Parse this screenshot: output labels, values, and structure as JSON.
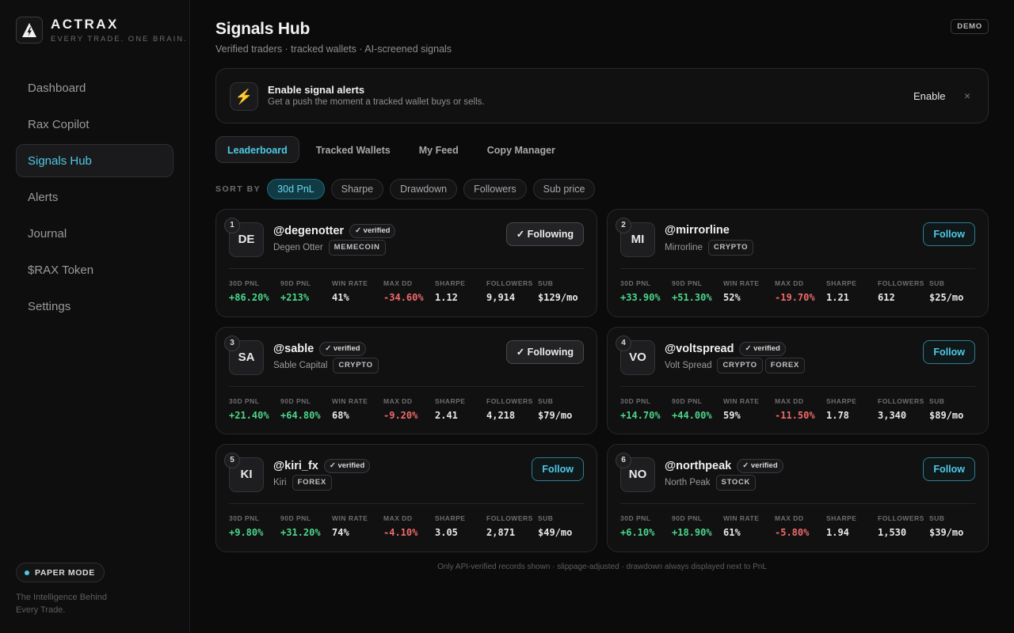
{
  "brand": {
    "name": "ACTRAX",
    "tagline": "EVERY TRADE. ONE BRAIN."
  },
  "nav": [
    {
      "label": "Dashboard",
      "key": "dashboard",
      "active": false
    },
    {
      "label": "Rax Copilot",
      "key": "rax-copilot",
      "active": false
    },
    {
      "label": "Signals Hub",
      "key": "signals-hub",
      "active": true
    },
    {
      "label": "Alerts",
      "key": "alerts",
      "active": false
    },
    {
      "label": "Journal",
      "key": "journal",
      "active": false
    },
    {
      "label": "$RAX Token",
      "key": "rax-token",
      "active": false
    },
    {
      "label": "Settings",
      "key": "settings",
      "active": false
    }
  ],
  "sidebar_footer": {
    "mode_label": "PAPER MODE",
    "blurb": "The Intelligence Behind Every Trade."
  },
  "page": {
    "title": "Signals Hub",
    "subtitle": "Verified traders · tracked wallets · AI-screened signals",
    "badge": "DEMO"
  },
  "alert": {
    "icon": "lightning-icon",
    "title": "Enable signal alerts",
    "text": "Get a push the moment a tracked wallet buys or sells.",
    "action": "Enable",
    "close": "×"
  },
  "tabs": [
    {
      "label": "Leaderboard",
      "active": true
    },
    {
      "label": "Tracked Wallets",
      "active": false
    },
    {
      "label": "My Feed",
      "active": false
    },
    {
      "label": "Copy Manager",
      "active": false
    }
  ],
  "sort": {
    "label": "SORT BY",
    "options": [
      {
        "label": "30d PnL",
        "active": true
      },
      {
        "label": "Sharpe",
        "active": false
      },
      {
        "label": "Drawdown",
        "active": false
      },
      {
        "label": "Followers",
        "active": false
      },
      {
        "label": "Sub price",
        "active": false
      }
    ]
  },
  "stat_labels": [
    "30D PNL",
    "90D PNL",
    "WIN RATE",
    "MAX DD",
    "SHARPE",
    "FOLLOWERS",
    "SUB"
  ],
  "verified_label": "✓ verified",
  "traders": [
    {
      "rank": "1",
      "initials": "DE",
      "handle": "@degenotter",
      "verified": true,
      "name": "Degen Otter",
      "tags": [
        "MEMECOIN"
      ],
      "button": "✓ Following",
      "following": true,
      "stats": [
        "+86.20%",
        "+213%",
        "41%",
        "-34.60%",
        "1.12",
        "9,914",
        "$129/mo"
      ]
    },
    {
      "rank": "2",
      "initials": "MI",
      "handle": "@mirrorline",
      "verified": false,
      "name": "Mirrorline",
      "tags": [
        "CRYPTO"
      ],
      "button": "Follow",
      "following": false,
      "stats": [
        "+33.90%",
        "+51.30%",
        "52%",
        "-19.70%",
        "1.21",
        "612",
        "$25/mo"
      ]
    },
    {
      "rank": "3",
      "initials": "SA",
      "handle": "@sable",
      "verified": true,
      "name": "Sable Capital",
      "tags": [
        "CRYPTO"
      ],
      "button": "✓ Following",
      "following": true,
      "stats": [
        "+21.40%",
        "+64.80%",
        "68%",
        "-9.20%",
        "2.41",
        "4,218",
        "$79/mo"
      ]
    },
    {
      "rank": "4",
      "initials": "VO",
      "handle": "@voltspread",
      "verified": true,
      "name": "Volt Spread",
      "tags": [
        "CRYPTO",
        "FOREX"
      ],
      "button": "Follow",
      "following": false,
      "stats": [
        "+14.70%",
        "+44.00%",
        "59%",
        "-11.50%",
        "1.78",
        "3,340",
        "$89/mo"
      ]
    },
    {
      "rank": "5",
      "initials": "KI",
      "handle": "@kiri_fx",
      "verified": true,
      "name": "Kiri",
      "tags": [
        "FOREX"
      ],
      "button": "Follow",
      "following": false,
      "stats": [
        "+9.80%",
        "+31.20%",
        "74%",
        "-4.10%",
        "3.05",
        "2,871",
        "$49/mo"
      ]
    },
    {
      "rank": "6",
      "initials": "NO",
      "handle": "@northpeak",
      "verified": true,
      "name": "North Peak",
      "tags": [
        "STOCK"
      ],
      "button": "Follow",
      "following": false,
      "stats": [
        "+6.10%",
        "+18.90%",
        "61%",
        "-5.80%",
        "1.94",
        "1,530",
        "$39/mo"
      ]
    }
  ],
  "footnote": "Only API-verified records shown · slippage-adjusted · drawdown always displayed next to PnL",
  "colors": {
    "accent": "#4ec9e6",
    "positive": "#4cd68a",
    "negative": "#f06a6a",
    "background": "#0b0b0c",
    "warning": "#f2c14e"
  }
}
